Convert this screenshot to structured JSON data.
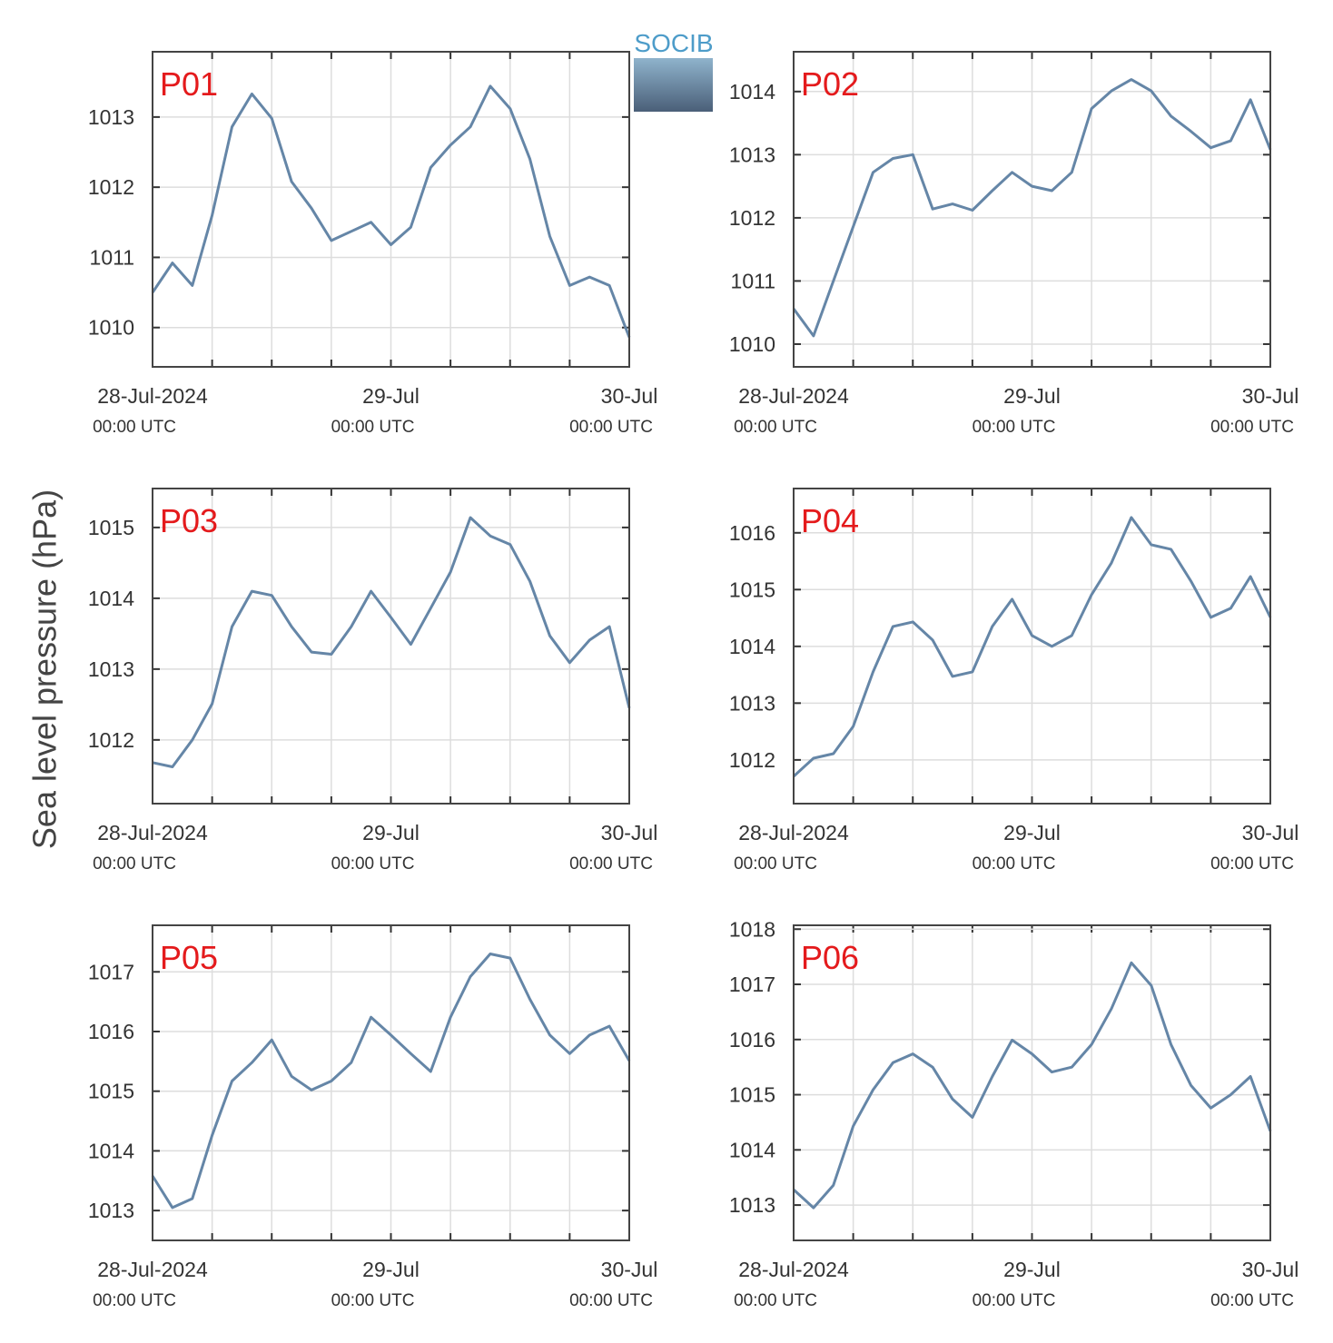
{
  "ylabel": "Sea level pressure (hPa)",
  "logo": "SOCIB",
  "chart_data": [
    {
      "type": "line",
      "title": "P01",
      "color": "#6586a7",
      "grid": true,
      "x": [
        "2024-07-28 00:00",
        "2024-07-28 02:00",
        "2024-07-28 04:00",
        "2024-07-28 06:00",
        "2024-07-28 08:00",
        "2024-07-28 10:00",
        "2024-07-28 12:00",
        "2024-07-28 14:00",
        "2024-07-28 16:00",
        "2024-07-28 18:00",
        "2024-07-28 20:00",
        "2024-07-28 22:00",
        "2024-07-29 00:00",
        "2024-07-29 02:00",
        "2024-07-29 04:00",
        "2024-07-29 06:00",
        "2024-07-29 08:00",
        "2024-07-29 10:00",
        "2024-07-29 12:00",
        "2024-07-29 14:00",
        "2024-07-29 16:00",
        "2024-07-29 18:00",
        "2024-07-29 20:00",
        "2024-07-29 22:00",
        "2024-07-30 00:00"
      ],
      "values": [
        1010.5,
        1010.92,
        1010.6,
        1011.6,
        1012.86,
        1013.33,
        1012.98,
        1012.08,
        1011.7,
        1011.24,
        1011.37,
        1011.5,
        1011.18,
        1011.43,
        1012.28,
        1012.6,
        1012.86,
        1013.44,
        1013.12,
        1012.4,
        1011.3,
        1010.6,
        1010.72,
        1010.6,
        1009.86
      ],
      "xlim": [
        "2024-07-28 00:00",
        "2024-07-30 00:00"
      ],
      "xticks": [
        {
          "value": "2024-07-28 00:00",
          "label": "28-Jul-2024",
          "sublabel": "00:00 UTC"
        },
        {
          "value": "2024-07-28 06:00",
          "label": null
        },
        {
          "value": "2024-07-28 12:00",
          "label": null
        },
        {
          "value": "2024-07-28 18:00",
          "label": null
        },
        {
          "value": "2024-07-29 00:00",
          "label": "29-Jul",
          "sublabel": "00:00 UTC"
        },
        {
          "value": "2024-07-29 06:00",
          "label": null
        },
        {
          "value": "2024-07-29 12:00",
          "label": null
        },
        {
          "value": "2024-07-29 18:00",
          "label": null
        },
        {
          "value": "2024-07-30 00:00",
          "label": "30-Jul",
          "sublabel": "00:00 UTC"
        }
      ],
      "ylim": [
        1009.44,
        1013.93
      ],
      "yticks": [
        1010,
        1011,
        1012,
        1013
      ]
    },
    {
      "type": "line",
      "title": "P02",
      "color": "#6586a7",
      "grid": true,
      "x": [
        "2024-07-28 00:00",
        "2024-07-28 02:00",
        "2024-07-28 04:00",
        "2024-07-28 06:00",
        "2024-07-28 08:00",
        "2024-07-28 10:00",
        "2024-07-28 12:00",
        "2024-07-28 14:00",
        "2024-07-28 16:00",
        "2024-07-28 18:00",
        "2024-07-28 20:00",
        "2024-07-28 22:00",
        "2024-07-29 00:00",
        "2024-07-29 02:00",
        "2024-07-29 04:00",
        "2024-07-29 06:00",
        "2024-07-29 08:00",
        "2024-07-29 10:00",
        "2024-07-29 12:00",
        "2024-07-29 14:00",
        "2024-07-29 16:00",
        "2024-07-29 18:00",
        "2024-07-29 20:00",
        "2024-07-29 22:00",
        "2024-07-30 00:00"
      ],
      "values": [
        1010.56,
        1010.13,
        1011.0,
        1011.86,
        1012.72,
        1012.94,
        1013.0,
        1012.14,
        1012.22,
        1012.12,
        1012.43,
        1012.72,
        1012.5,
        1012.43,
        1012.72,
        1013.73,
        1014.01,
        1014.19,
        1014.01,
        1013.61,
        1013.37,
        1013.11,
        1013.22,
        1013.87,
        1013.08
      ],
      "xlim": [
        "2024-07-28 00:00",
        "2024-07-30 00:00"
      ],
      "xticks": [
        {
          "value": "2024-07-28 00:00",
          "label": "28-Jul-2024",
          "sublabel": "00:00 UTC"
        },
        {
          "value": "2024-07-28 06:00",
          "label": null
        },
        {
          "value": "2024-07-28 12:00",
          "label": null
        },
        {
          "value": "2024-07-28 18:00",
          "label": null
        },
        {
          "value": "2024-07-29 00:00",
          "label": "29-Jul",
          "sublabel": "00:00 UTC"
        },
        {
          "value": "2024-07-29 06:00",
          "label": null
        },
        {
          "value": "2024-07-29 12:00",
          "label": null
        },
        {
          "value": "2024-07-29 18:00",
          "label": null
        },
        {
          "value": "2024-07-30 00:00",
          "label": "30-Jul",
          "sublabel": "00:00 UTC"
        }
      ],
      "ylim": [
        1009.64,
        1014.63
      ],
      "yticks": [
        1010,
        1011,
        1012,
        1013,
        1014
      ]
    },
    {
      "type": "line",
      "title": "P03",
      "color": "#6586a7",
      "grid": true,
      "x": [
        "2024-07-28 00:00",
        "2024-07-28 02:00",
        "2024-07-28 04:00",
        "2024-07-28 06:00",
        "2024-07-28 08:00",
        "2024-07-28 10:00",
        "2024-07-28 12:00",
        "2024-07-28 14:00",
        "2024-07-28 16:00",
        "2024-07-28 18:00",
        "2024-07-28 20:00",
        "2024-07-28 22:00",
        "2024-07-29 00:00",
        "2024-07-29 02:00",
        "2024-07-29 04:00",
        "2024-07-29 06:00",
        "2024-07-29 08:00",
        "2024-07-29 10:00",
        "2024-07-29 12:00",
        "2024-07-29 14:00",
        "2024-07-29 16:00",
        "2024-07-29 18:00",
        "2024-07-29 20:00",
        "2024-07-29 22:00",
        "2024-07-30 00:00"
      ],
      "values": [
        1011.68,
        1011.62,
        1012.0,
        1012.51,
        1013.6,
        1014.1,
        1014.04,
        1013.6,
        1013.24,
        1013.21,
        1013.6,
        1014.1,
        1013.73,
        1013.35,
        1013.86,
        1014.37,
        1015.14,
        1014.88,
        1014.76,
        1014.24,
        1013.47,
        1013.09,
        1013.41,
        1013.6,
        1012.45
      ],
      "xlim": [
        "2024-07-28 00:00",
        "2024-07-30 00:00"
      ],
      "xticks": [
        {
          "value": "2024-07-28 00:00",
          "label": "28-Jul-2024",
          "sublabel": "00:00 UTC"
        },
        {
          "value": "2024-07-28 06:00",
          "label": null
        },
        {
          "value": "2024-07-28 12:00",
          "label": null
        },
        {
          "value": "2024-07-28 18:00",
          "label": null
        },
        {
          "value": "2024-07-29 00:00",
          "label": "29-Jul",
          "sublabel": "00:00 UTC"
        },
        {
          "value": "2024-07-29 06:00",
          "label": null
        },
        {
          "value": "2024-07-29 12:00",
          "label": null
        },
        {
          "value": "2024-07-29 18:00",
          "label": null
        },
        {
          "value": "2024-07-30 00:00",
          "label": "30-Jul",
          "sublabel": "00:00 UTC"
        }
      ],
      "ylim": [
        1011.1,
        1015.55
      ],
      "yticks": [
        1012,
        1013,
        1014,
        1015
      ]
    },
    {
      "type": "line",
      "title": "P04",
      "color": "#6586a7",
      "grid": true,
      "x": [
        "2024-07-28 00:00",
        "2024-07-28 02:00",
        "2024-07-28 04:00",
        "2024-07-28 06:00",
        "2024-07-28 08:00",
        "2024-07-28 10:00",
        "2024-07-28 12:00",
        "2024-07-28 14:00",
        "2024-07-28 16:00",
        "2024-07-28 18:00",
        "2024-07-28 20:00",
        "2024-07-28 22:00",
        "2024-07-29 00:00",
        "2024-07-29 02:00",
        "2024-07-29 04:00",
        "2024-07-29 06:00",
        "2024-07-29 08:00",
        "2024-07-29 10:00",
        "2024-07-29 12:00",
        "2024-07-29 14:00",
        "2024-07-29 16:00",
        "2024-07-29 18:00",
        "2024-07-29 20:00",
        "2024-07-29 22:00",
        "2024-07-30 00:00"
      ],
      "values": [
        1011.71,
        1012.03,
        1012.11,
        1012.59,
        1013.55,
        1014.35,
        1014.43,
        1014.11,
        1013.47,
        1013.55,
        1014.35,
        1014.83,
        1014.19,
        1014.0,
        1014.19,
        1014.91,
        1015.47,
        1016.27,
        1015.79,
        1015.71,
        1015.15,
        1014.51,
        1014.67,
        1015.23,
        1014.51
      ],
      "xlim": [
        "2024-07-28 00:00",
        "2024-07-30 00:00"
      ],
      "xticks": [
        {
          "value": "2024-07-28 00:00",
          "label": "28-Jul-2024",
          "sublabel": "00:00 UTC"
        },
        {
          "value": "2024-07-28 06:00",
          "label": null
        },
        {
          "value": "2024-07-28 12:00",
          "label": null
        },
        {
          "value": "2024-07-28 18:00",
          "label": null
        },
        {
          "value": "2024-07-29 00:00",
          "label": "29-Jul",
          "sublabel": "00:00 UTC"
        },
        {
          "value": "2024-07-29 06:00",
          "label": null
        },
        {
          "value": "2024-07-29 12:00",
          "label": null
        },
        {
          "value": "2024-07-29 18:00",
          "label": null
        },
        {
          "value": "2024-07-30 00:00",
          "label": "30-Jul",
          "sublabel": "00:00 UTC"
        }
      ],
      "ylim": [
        1011.23,
        1016.78
      ],
      "yticks": [
        1012,
        1013,
        1014,
        1015,
        1016
      ]
    },
    {
      "type": "line",
      "title": "P05",
      "color": "#6586a7",
      "grid": true,
      "x": [
        "2024-07-28 00:00",
        "2024-07-28 02:00",
        "2024-07-28 04:00",
        "2024-07-28 06:00",
        "2024-07-28 08:00",
        "2024-07-28 10:00",
        "2024-07-28 12:00",
        "2024-07-28 14:00",
        "2024-07-28 16:00",
        "2024-07-28 18:00",
        "2024-07-28 20:00",
        "2024-07-28 22:00",
        "2024-07-29 00:00",
        "2024-07-29 02:00",
        "2024-07-29 04:00",
        "2024-07-29 06:00",
        "2024-07-29 08:00",
        "2024-07-29 10:00",
        "2024-07-29 12:00",
        "2024-07-29 14:00",
        "2024-07-29 16:00",
        "2024-07-29 18:00",
        "2024-07-29 20:00",
        "2024-07-29 22:00",
        "2024-07-30 00:00"
      ],
      "values": [
        1013.58,
        1013.05,
        1013.2,
        1014.26,
        1015.17,
        1015.48,
        1015.86,
        1015.25,
        1015.02,
        1015.17,
        1015.48,
        1016.24,
        1015.94,
        1015.63,
        1015.33,
        1016.24,
        1016.92,
        1017.3,
        1017.23,
        1016.54,
        1015.94,
        1015.63,
        1015.94,
        1016.09,
        1015.51
      ],
      "xlim": [
        "2024-07-28 00:00",
        "2024-07-30 00:00"
      ],
      "xticks": [
        {
          "value": "2024-07-28 00:00",
          "label": "28-Jul-2024",
          "sublabel": "00:00 UTC"
        },
        {
          "value": "2024-07-28 06:00",
          "label": null
        },
        {
          "value": "2024-07-28 12:00",
          "label": null
        },
        {
          "value": "2024-07-28 18:00",
          "label": null
        },
        {
          "value": "2024-07-29 00:00",
          "label": "29-Jul",
          "sublabel": "00:00 UTC"
        },
        {
          "value": "2024-07-29 06:00",
          "label": null
        },
        {
          "value": "2024-07-29 12:00",
          "label": null
        },
        {
          "value": "2024-07-29 18:00",
          "label": null
        },
        {
          "value": "2024-07-30 00:00",
          "label": "30-Jul",
          "sublabel": "00:00 UTC"
        }
      ],
      "ylim": [
        1012.5,
        1017.78
      ],
      "yticks": [
        1013,
        1014,
        1015,
        1016,
        1017
      ]
    },
    {
      "type": "line",
      "title": "P06",
      "color": "#6586a7",
      "grid": true,
      "x": [
        "2024-07-28 00:00",
        "2024-07-28 02:00",
        "2024-07-28 04:00",
        "2024-07-28 06:00",
        "2024-07-28 08:00",
        "2024-07-28 10:00",
        "2024-07-28 12:00",
        "2024-07-28 14:00",
        "2024-07-28 16:00",
        "2024-07-28 18:00",
        "2024-07-28 20:00",
        "2024-07-28 22:00",
        "2024-07-29 00:00",
        "2024-07-29 02:00",
        "2024-07-29 04:00",
        "2024-07-29 06:00",
        "2024-07-29 08:00",
        "2024-07-29 10:00",
        "2024-07-29 12:00",
        "2024-07-29 14:00",
        "2024-07-29 16:00",
        "2024-07-29 18:00",
        "2024-07-29 20:00",
        "2024-07-29 22:00",
        "2024-07-30 00:00"
      ],
      "values": [
        1013.28,
        1012.95,
        1013.36,
        1014.43,
        1015.09,
        1015.58,
        1015.74,
        1015.5,
        1014.92,
        1014.59,
        1015.33,
        1015.99,
        1015.74,
        1015.41,
        1015.5,
        1015.91,
        1016.56,
        1017.39,
        1016.98,
        1015.91,
        1015.17,
        1014.76,
        1015.0,
        1015.33,
        1014.34
      ],
      "xlim": [
        "2024-07-28 00:00",
        "2024-07-30 00:00"
      ],
      "xticks": [
        {
          "value": "2024-07-28 00:00",
          "label": "28-Jul-2024",
          "sublabel": "00:00 UTC"
        },
        {
          "value": "2024-07-28 06:00",
          "label": null
        },
        {
          "value": "2024-07-28 12:00",
          "label": null
        },
        {
          "value": "2024-07-28 18:00",
          "label": null
        },
        {
          "value": "2024-07-29 00:00",
          "label": "29-Jul",
          "sublabel": "00:00 UTC"
        },
        {
          "value": "2024-07-29 06:00",
          "label": null
        },
        {
          "value": "2024-07-29 12:00",
          "label": null
        },
        {
          "value": "2024-07-29 18:00",
          "label": null
        },
        {
          "value": "2024-07-30 00:00",
          "label": "30-Jul",
          "sublabel": "00:00 UTC"
        }
      ],
      "ylim": [
        1012.36,
        1018.07
      ],
      "yticks": [
        1013,
        1014,
        1015,
        1016,
        1017,
        1018
      ]
    }
  ]
}
